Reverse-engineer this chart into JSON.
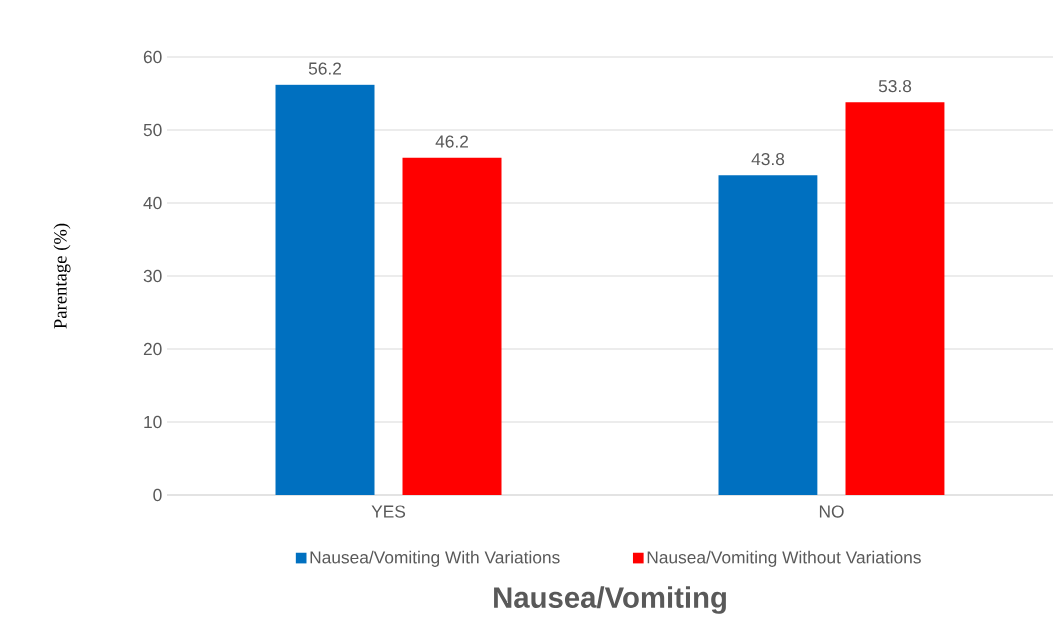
{
  "chart_data": {
    "type": "bar",
    "xlabel": "Nausea/Vomiting",
    "ylabel": "Parentage (%)",
    "categories": [
      "YES",
      "NO"
    ],
    "series": [
      {
        "name": "Nausea/Vomiting With Variations",
        "color": "#0070c0",
        "values": [
          56.2,
          43.8
        ]
      },
      {
        "name": "Nausea/Vomiting Without Variations",
        "color": "#ff0000",
        "values": [
          46.2,
          53.8
        ]
      }
    ],
    "ylim": [
      0,
      60
    ],
    "yticks": [
      0,
      10,
      20,
      30,
      40,
      50,
      60
    ],
    "grid": "y",
    "legend": "bottom",
    "data_labels": true
  }
}
